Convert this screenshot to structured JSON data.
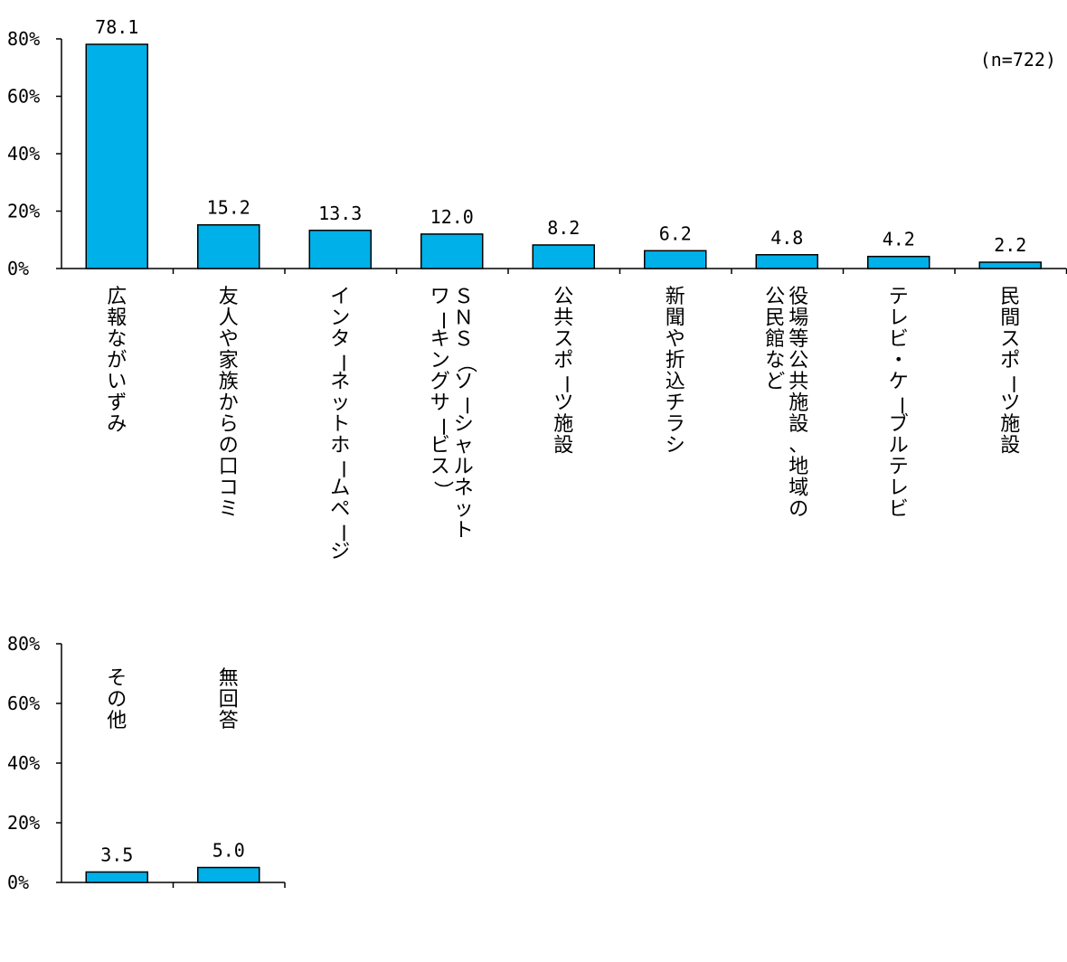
{
  "sample_note": "(n=722)",
  "colors": {
    "bar": "#00B0E8",
    "bar_stroke": "#000000",
    "axis": "#000000"
  },
  "chart_data": [
    {
      "type": "bar",
      "title": "",
      "xlabel": "",
      "ylabel": "",
      "ylim": [
        0,
        80
      ],
      "yticks": [
        "0%",
        "20%",
        "40%",
        "60%",
        "80%"
      ],
      "grid": false,
      "categories": [
        [
          "広報ながいずみ"
        ],
        [
          "友人や家族からの口コミ"
        ],
        [
          "インターネットホームページ"
        ],
        [
          "ＳＮＳ（ソーシャルネット",
          "ワーキングサービス）"
        ],
        [
          "公共スポーツ施設"
        ],
        [
          "新聞や折込チラシ"
        ],
        [
          "役場等公共施設、地域の",
          "公民館など"
        ],
        [
          "テレビ・ケーブルテレビ"
        ],
        [
          "民間スポーツ施設"
        ]
      ],
      "values": [
        78.1,
        15.2,
        13.3,
        12.0,
        8.2,
        6.2,
        4.8,
        4.2,
        2.2
      ],
      "value_labels": [
        "78.1",
        "15.2",
        "13.3",
        "12.0",
        "8.2",
        "6.2",
        "4.8",
        "4.2",
        "2.2"
      ]
    },
    {
      "type": "bar",
      "title": "",
      "xlabel": "",
      "ylabel": "",
      "ylim": [
        0,
        80
      ],
      "yticks": [
        "0%",
        "20%",
        "40%",
        "60%",
        "80%"
      ],
      "grid": false,
      "categories": [
        [
          "その他"
        ],
        [
          "無回答"
        ]
      ],
      "values": [
        3.5,
        5.0
      ],
      "value_labels": [
        "3.5",
        "5.0"
      ]
    }
  ]
}
